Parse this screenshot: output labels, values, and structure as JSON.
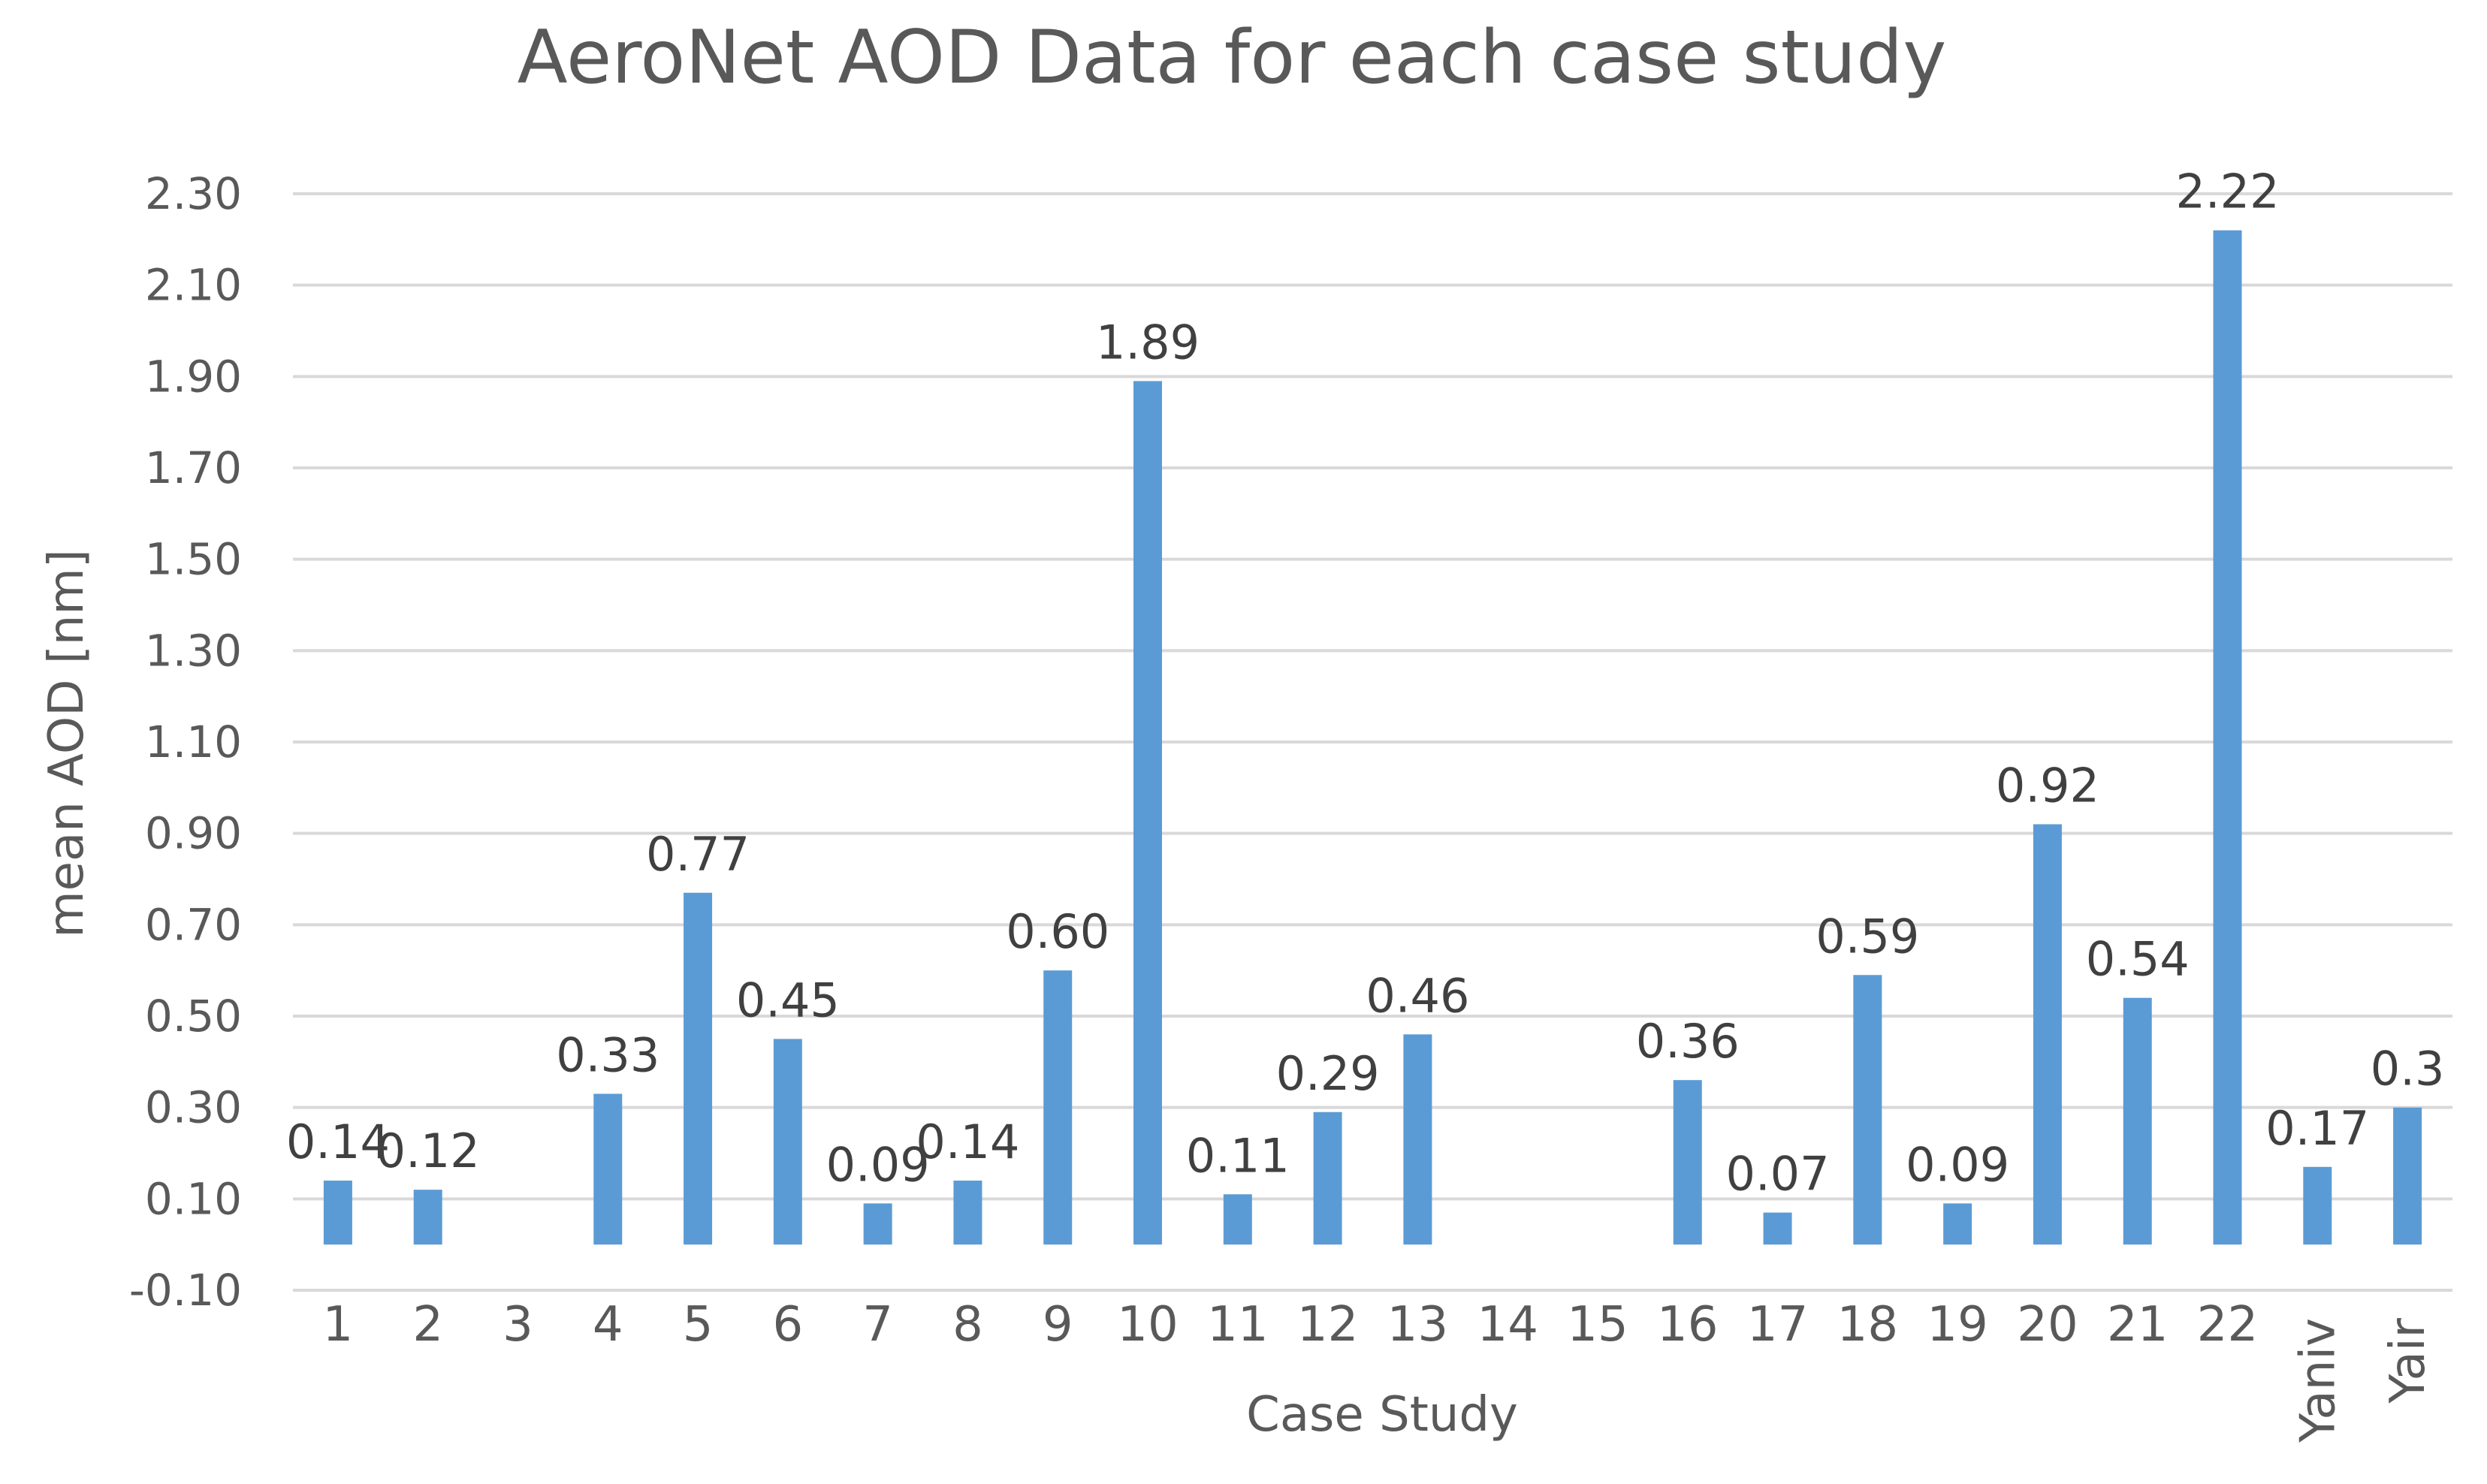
{
  "chart_data": {
    "type": "bar",
    "title": "AeroNet AOD Data for each case study",
    "xlabel": "Case Study",
    "ylabel": "mean AOD [nm]",
    "ylim": [
      -0.1,
      2.3
    ],
    "y_ticks": [
      "-0.10",
      "0.10",
      "0.30",
      "0.50",
      "0.70",
      "0.90",
      "1.10",
      "1.30",
      "1.50",
      "1.70",
      "1.90",
      "2.10",
      "2.30"
    ],
    "grid": true,
    "categories": [
      "1",
      "2",
      "3",
      "4",
      "5",
      "6",
      "7",
      "8",
      "9",
      "10",
      "11",
      "12",
      "13",
      "14",
      "15",
      "16",
      "17",
      "18",
      "19",
      "20",
      "21",
      "22",
      "Yaniv",
      "Yair"
    ],
    "values": [
      0.14,
      0.12,
      null,
      0.33,
      0.77,
      0.45,
      0.09,
      0.14,
      0.6,
      1.89,
      0.11,
      0.29,
      0.46,
      null,
      null,
      0.36,
      0.07,
      0.59,
      0.09,
      0.92,
      0.54,
      2.22,
      0.17,
      0.3
    ],
    "data_labels": [
      "0.14",
      "0.12",
      "",
      "0.33",
      "0.77",
      "0.45",
      "0.09",
      "0.14",
      "0.60",
      "1.89",
      "0.11",
      "0.29",
      "0.46",
      "",
      "",
      "0.36",
      "0.07",
      "0.59",
      "0.09",
      "0.92",
      "0.54",
      "2.22",
      "0.17",
      "0.3"
    ],
    "colors": {
      "bar": "#5b9bd5",
      "grid": "#d9d9d9",
      "text": "#595959"
    }
  }
}
